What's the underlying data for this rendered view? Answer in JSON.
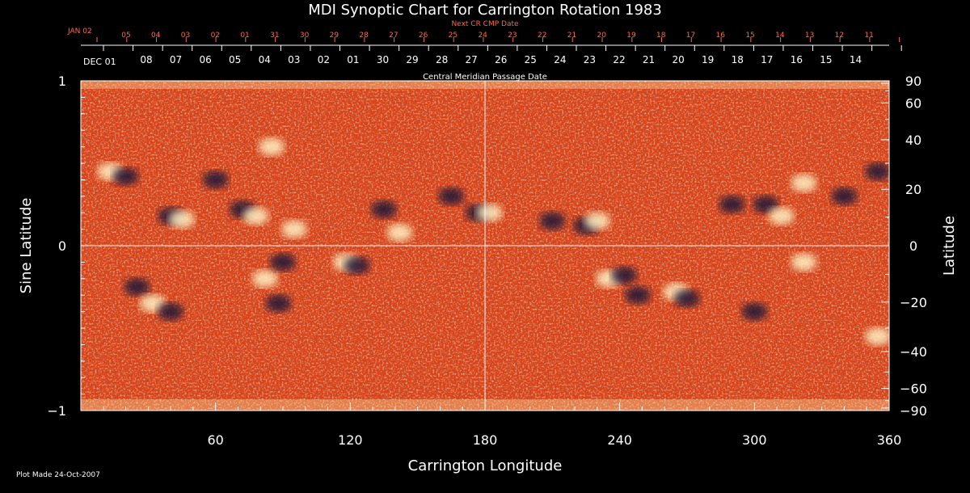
{
  "chart_data": {
    "type": "heatmap",
    "title": "MDI Synoptic Chart for Carrington Rotation 1983",
    "xlabel": "Carrington Longitude",
    "ylabel_left": "Sine Latitude",
    "ylabel_right": "Latitude",
    "xlim": [
      0,
      360
    ],
    "ylim": [
      -1,
      1
    ],
    "x_ticks": [
      60,
      120,
      180,
      240,
      300,
      360
    ],
    "y_left_ticks": [
      {
        "value": 1,
        "label": "1"
      },
      {
        "value": 0,
        "label": "0"
      },
      {
        "value": -1,
        "label": "−1"
      }
    ],
    "y_right_ticks": [
      90,
      60,
      40,
      20,
      0,
      -20,
      -40,
      -60,
      -90
    ],
    "cmp_axis_label": "Central Meridian Passage Date",
    "cmp_start_label": "DEC 01",
    "cmp_dates": [
      "08",
      "07",
      "06",
      "05",
      "04",
      "03",
      "02",
      "01",
      "30",
      "29",
      "28",
      "27",
      "26",
      "25",
      "24",
      "23",
      "22",
      "21",
      "20",
      "19",
      "18",
      "17",
      "16",
      "15",
      "14"
    ],
    "next_cr_label": "Next CR CMP Date",
    "next_cr_start_label": "JAN 02",
    "next_cr_dates": [
      "05",
      "04",
      "03",
      "02",
      "01",
      "31",
      "30",
      "29",
      "28",
      "27",
      "26",
      "25",
      "24",
      "23",
      "22",
      "21",
      "20",
      "19",
      "18",
      "17",
      "16",
      "15",
      "14",
      "13",
      "12",
      "11"
    ],
    "footer": "Plot Made 24-Oct-2007",
    "colors": {
      "background": "#000000",
      "map_base": "#d8431a",
      "map_positive": "#fff3c4",
      "map_negative": "#1a1238",
      "next_cr_text": "#ff6a3d"
    },
    "active_regions": [
      {
        "lon": 13,
        "lat": 0.45,
        "polarity": "positive"
      },
      {
        "lon": 20,
        "lat": 0.42,
        "polarity": "negative"
      },
      {
        "lon": 25,
        "lat": -0.25,
        "polarity": "negative"
      },
      {
        "lon": 32,
        "lat": -0.35,
        "polarity": "positive"
      },
      {
        "lon": 40,
        "lat": -0.4,
        "polarity": "negative"
      },
      {
        "lon": 40,
        "lat": 0.18,
        "polarity": "negative"
      },
      {
        "lon": 45,
        "lat": 0.16,
        "polarity": "positive"
      },
      {
        "lon": 60,
        "lat": 0.4,
        "polarity": "negative"
      },
      {
        "lon": 72,
        "lat": 0.22,
        "polarity": "negative"
      },
      {
        "lon": 78,
        "lat": 0.18,
        "polarity": "positive"
      },
      {
        "lon": 85,
        "lat": 0.6,
        "polarity": "positive"
      },
      {
        "lon": 82,
        "lat": -0.2,
        "polarity": "positive"
      },
      {
        "lon": 88,
        "lat": -0.35,
        "polarity": "negative"
      },
      {
        "lon": 90,
        "lat": -0.1,
        "polarity": "negative"
      },
      {
        "lon": 95,
        "lat": 0.1,
        "polarity": "positive"
      },
      {
        "lon": 118,
        "lat": -0.1,
        "polarity": "positive"
      },
      {
        "lon": 123,
        "lat": -0.12,
        "polarity": "negative"
      },
      {
        "lon": 135,
        "lat": 0.22,
        "polarity": "negative"
      },
      {
        "lon": 142,
        "lat": 0.08,
        "polarity": "positive"
      },
      {
        "lon": 165,
        "lat": 0.3,
        "polarity": "negative"
      },
      {
        "lon": 177,
        "lat": 0.2,
        "polarity": "negative"
      },
      {
        "lon": 182,
        "lat": 0.2,
        "polarity": "positive"
      },
      {
        "lon": 210,
        "lat": 0.15,
        "polarity": "negative"
      },
      {
        "lon": 225,
        "lat": 0.12,
        "polarity": "negative"
      },
      {
        "lon": 230,
        "lat": 0.15,
        "polarity": "positive"
      },
      {
        "lon": 235,
        "lat": -0.2,
        "polarity": "positive"
      },
      {
        "lon": 242,
        "lat": -0.18,
        "polarity": "negative"
      },
      {
        "lon": 248,
        "lat": -0.3,
        "polarity": "negative"
      },
      {
        "lon": 265,
        "lat": -0.28,
        "polarity": "positive"
      },
      {
        "lon": 270,
        "lat": -0.32,
        "polarity": "negative"
      },
      {
        "lon": 290,
        "lat": 0.25,
        "polarity": "negative"
      },
      {
        "lon": 300,
        "lat": -0.4,
        "polarity": "negative"
      },
      {
        "lon": 305,
        "lat": 0.25,
        "polarity": "negative"
      },
      {
        "lon": 312,
        "lat": 0.18,
        "polarity": "positive"
      },
      {
        "lon": 322,
        "lat": 0.38,
        "polarity": "positive"
      },
      {
        "lon": 322,
        "lat": -0.1,
        "polarity": "positive"
      },
      {
        "lon": 340,
        "lat": 0.3,
        "polarity": "negative"
      },
      {
        "lon": 355,
        "lat": 0.45,
        "polarity": "negative"
      },
      {
        "lon": 355,
        "lat": -0.55,
        "polarity": "positive"
      }
    ]
  }
}
